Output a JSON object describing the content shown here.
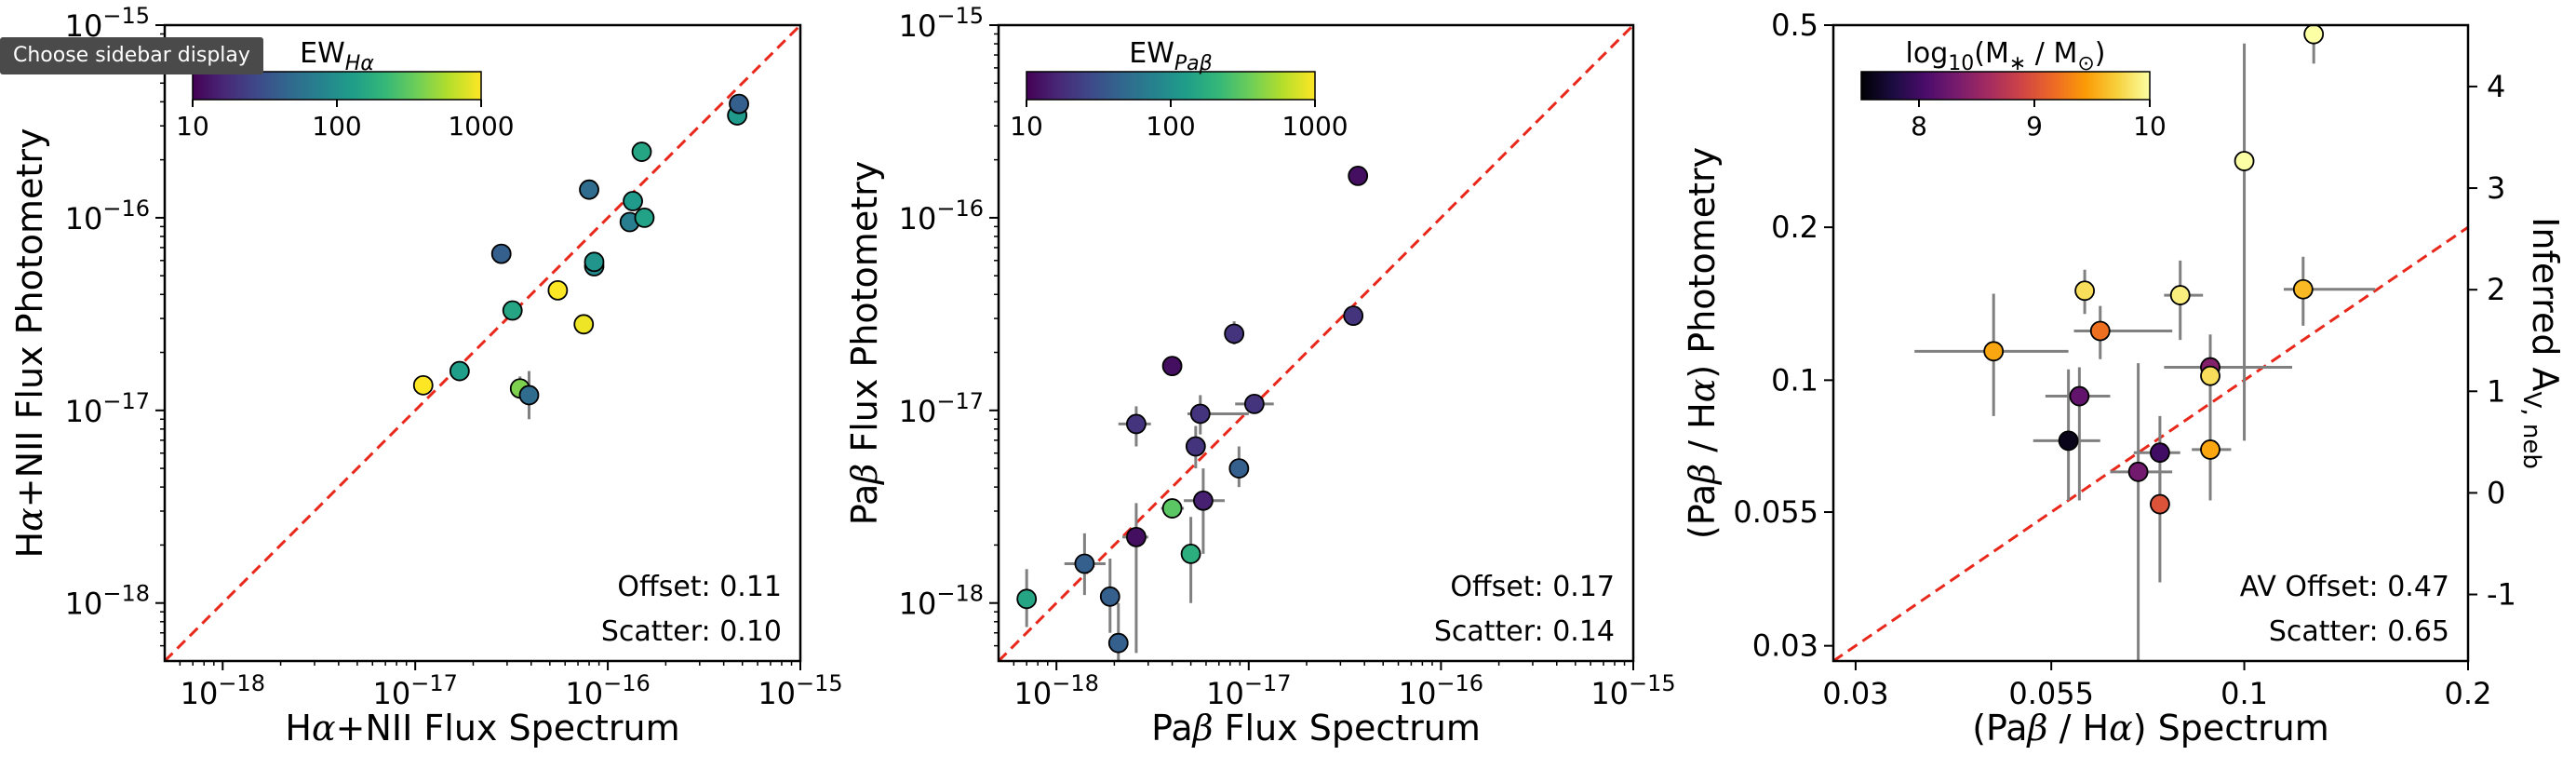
{
  "tooltip": "Choose sidebar display",
  "chart_data": [
    {
      "type": "scatter",
      "xlabel": "Hα+NII Flux Spectrum",
      "ylabel": "Hα+NII Flux Photometry",
      "xscale": "log",
      "yscale": "log",
      "xlim": [
        5e-19,
        1e-15
      ],
      "ylim": [
        5e-19,
        1e-15
      ],
      "xticks": [
        "10⁻¹⁸",
        "10⁻¹⁷",
        "10⁻¹⁶",
        "10⁻¹⁵"
      ],
      "yticks": [
        "10⁻¹⁸",
        "10⁻¹⁷",
        "10⁻¹⁶",
        "10⁻¹⁵"
      ],
      "colorbar": {
        "label": "EWHα",
        "label_main": "EW",
        "label_sub": "Hα",
        "cmap": "viridis",
        "scale": "log",
        "range": [
          10,
          1000
        ],
        "ticks": [
          "10",
          "100",
          "1000"
        ]
      },
      "reference_line": "y = x (red dashed)",
      "annotations": [
        "Offset: 0.11",
        "Scatter: 0.10"
      ],
      "points": [
        {
          "x": 1.1e-17,
          "y": 1.35e-17,
          "c": 1000
        },
        {
          "x": 1.7e-17,
          "y": 1.6e-17,
          "c": 130
        },
        {
          "x": 2.8e-17,
          "y": 6.5e-17,
          "c": 40
        },
        {
          "x": 3.2e-17,
          "y": 3.3e-17,
          "c": 150
        },
        {
          "x": 3.5e-17,
          "y": 1.3e-17,
          "c": 400,
          "yerr": [
            1.15e-17,
            1.5e-17
          ]
        },
        {
          "x": 3.9e-17,
          "y": 1.2e-17,
          "c": 50,
          "yerr": [
            9e-18,
            1.6e-17
          ]
        },
        {
          "x": 5.5e-17,
          "y": 4.2e-17,
          "c": 1000
        },
        {
          "x": 7.5e-17,
          "y": 2.8e-17,
          "c": 900
        },
        {
          "x": 8e-17,
          "y": 1.4e-16,
          "c": 50
        },
        {
          "x": 8.5e-17,
          "y": 5.6e-17,
          "c": 90
        },
        {
          "x": 8.5e-17,
          "y": 5.9e-17,
          "c": 110
        },
        {
          "x": 1.3e-16,
          "y": 9.5e-17,
          "c": 70
        },
        {
          "x": 1.35e-16,
          "y": 1.22e-16,
          "c": 120
        },
        {
          "x": 1.5e-16,
          "y": 2.2e-16,
          "c": 150
        },
        {
          "x": 1.55e-16,
          "y": 1e-16,
          "c": 140
        },
        {
          "x": 4.7e-16,
          "y": 3.4e-16,
          "c": 120
        },
        {
          "x": 4.8e-16,
          "y": 3.9e-16,
          "c": 40
        }
      ]
    },
    {
      "type": "scatter",
      "xlabel": "Paβ Flux Spectrum",
      "ylabel": "Paβ Flux Photometry",
      "xscale": "log",
      "yscale": "log",
      "xlim": [
        5e-19,
        1e-15
      ],
      "ylim": [
        5e-19,
        1e-15
      ],
      "xticks": [
        "10⁻¹⁸",
        "10⁻¹⁷",
        "10⁻¹⁶",
        "10⁻¹⁵"
      ],
      "yticks": [
        "10⁻¹⁸",
        "10⁻¹⁷",
        "10⁻¹⁶",
        "10⁻¹⁵"
      ],
      "colorbar": {
        "label": "EWPaβ",
        "label_main": "EW",
        "label_sub": "Paβ",
        "cmap": "viridis",
        "scale": "log",
        "range": [
          10,
          1000
        ],
        "ticks": [
          "10",
          "100",
          "1000"
        ]
      },
      "reference_line": "y = x (red dashed)",
      "annotations": [
        "Offset: 0.17",
        "Scatter: 0.14"
      ],
      "points": [
        {
          "x": 7e-19,
          "y": 1.05e-18,
          "c": 150,
          "yerr": [
            7.5e-19,
            1.5e-18
          ]
        },
        {
          "x": 1.4e-18,
          "y": 1.6e-18,
          "c": 40,
          "xerr": [
            1.1e-18,
            1.8e-18
          ],
          "yerr": [
            1.1e-18,
            2.3e-18
          ]
        },
        {
          "x": 1.9e-18,
          "y": 1.08e-18,
          "c": 40,
          "yerr": [
            7e-19,
            1.7e-18
          ]
        },
        {
          "x": 2.1e-18,
          "y": 6.2e-19,
          "c": 40,
          "yerr": [
            4.5e-19,
            1e-18
          ]
        },
        {
          "x": 2.6e-18,
          "y": 8.5e-18,
          "c": 20,
          "xerr": [
            2.1e-18,
            3.1e-18
          ],
          "yerr": [
            6.5e-18,
            1.05e-17
          ]
        },
        {
          "x": 2.6e-18,
          "y": 2.2e-18,
          "c": 12,
          "xerr": [
            2.2e-18,
            3e-18
          ],
          "yerr": [
            5.5e-19,
            3.3e-18
          ]
        },
        {
          "x": 4e-18,
          "y": 3.1e-18,
          "c": 300,
          "xerr": [
            3.5e-18,
            4.6e-18
          ]
        },
        {
          "x": 4e-18,
          "y": 1.7e-17,
          "c": 12
        },
        {
          "x": 5e-18,
          "y": 1.8e-18,
          "c": 180,
          "yerr": [
            1e-18,
            2.8e-18
          ]
        },
        {
          "x": 5.3e-18,
          "y": 6.5e-18,
          "c": 20,
          "yerr": [
            5e-18,
            8.3e-18
          ]
        },
        {
          "x": 5.6e-18,
          "y": 9.6e-18,
          "c": 20,
          "xerr": [
            4.8e-18,
            1e-17
          ],
          "yerr": [
            7.5e-18,
            1.2e-17
          ]
        },
        {
          "x": 5.8e-18,
          "y": 3.4e-18,
          "c": 15,
          "xerr": [
            4.6e-18,
            7.5e-18
          ],
          "yerr": [
            1.8e-18,
            5e-18
          ]
        },
        {
          "x": 8.4e-18,
          "y": 2.5e-17,
          "c": 20,
          "yerr": [
            2.2e-17,
            2.9e-17
          ]
        },
        {
          "x": 8.9e-18,
          "y": 5e-18,
          "c": 40,
          "yerr": [
            4e-18,
            6.5e-18
          ]
        },
        {
          "x": 1.07e-17,
          "y": 1.08e-17,
          "c": 20,
          "xerr": [
            8.5e-18,
            1.35e-17
          ]
        },
        {
          "x": 3.5e-17,
          "y": 3.1e-17,
          "c": 20
        },
        {
          "x": 3.7e-17,
          "y": 1.65e-16,
          "c": 12
        }
      ]
    },
    {
      "type": "scatter",
      "xlabel": "(Paβ / Hα) Spectrum",
      "ylabel": "(Paβ / Hα) Photometry",
      "ylabel_right": "Inferred AV,neb",
      "ylabel_right_main": "Inferred A",
      "ylabel_right_sub": "V, neb",
      "xscale": "log",
      "yscale": "log",
      "xlim": [
        0.028,
        0.2
      ],
      "ylim": [
        0.028,
        0.5
      ],
      "xticks": [
        "0.03",
        "0.055",
        "0.1",
        "0.2"
      ],
      "yticks": [
        "0.03",
        "0.055",
        "0.1",
        "0.2",
        "0.5"
      ],
      "yticks_right": [
        "-1",
        "0",
        "1",
        "2",
        "3",
        "4"
      ],
      "colorbar": {
        "label": "log10(M∗ / M⊙)",
        "cmap": "inferno",
        "range": [
          7.5,
          10
        ],
        "ticks": [
          "8",
          "9",
          "10"
        ]
      },
      "reference_line": "y = x (red dashed)",
      "annotations": [
        "AV Offset: 0.47",
        "Scatter: 0.65"
      ],
      "points": [
        {
          "x": 0.046,
          "y": 0.114,
          "c": 9.5,
          "xerr": [
            0.036,
            0.058
          ],
          "yerr": [
            0.085,
            0.148
          ]
        },
        {
          "x": 0.058,
          "y": 0.076,
          "c": 7.6,
          "xerr": [
            0.052,
            0.064
          ],
          "yerr": [
            0.058,
            0.105
          ]
        },
        {
          "x": 0.06,
          "y": 0.093,
          "c": 8.2,
          "xerr": [
            0.054,
            0.066
          ],
          "yerr": [
            0.058,
            0.106
          ]
        },
        {
          "x": 0.061,
          "y": 0.15,
          "c": 9.8,
          "yerr": [
            0.135,
            0.165
          ]
        },
        {
          "x": 0.064,
          "y": 0.125,
          "c": 9.2,
          "xerr": [
            0.059,
            0.08
          ],
          "yerr": [
            0.11,
            0.14
          ]
        },
        {
          "x": 0.072,
          "y": 0.066,
          "c": 8.3,
          "xerr": [
            0.066,
            0.08
          ],
          "yerr": [
            0.026,
            0.108
          ]
        },
        {
          "x": 0.077,
          "y": 0.072,
          "c": 8.0,
          "xerr": [
            0.071,
            0.082
          ],
          "yerr": [
            0.058,
            0.085
          ]
        },
        {
          "x": 0.077,
          "y": 0.057,
          "c": 9.0,
          "yerr": [
            0.04,
            0.066
          ]
        },
        {
          "x": 0.082,
          "y": 0.147,
          "c": 9.9,
          "xerr": [
            0.078,
            0.088
          ],
          "yerr": [
            0.12,
            0.172
          ]
        },
        {
          "x": 0.09,
          "y": 0.106,
          "c": 8.4,
          "xerr": [
            0.078,
            0.116
          ],
          "yerr": [
            0.09,
            0.123
          ]
        },
        {
          "x": 0.09,
          "y": 0.102,
          "c": 9.8
        },
        {
          "x": 0.09,
          "y": 0.073,
          "c": 9.5,
          "xerr": [
            0.085,
            0.096
          ],
          "yerr": [
            0.058,
            0.1
          ]
        },
        {
          "x": 0.1,
          "y": 0.27,
          "c": 10,
          "yerr": [
            0.076,
            0.46
          ]
        },
        {
          "x": 0.12,
          "y": 0.151,
          "c": 9.6,
          "xerr": [
            0.113,
            0.15
          ],
          "yerr": [
            0.128,
            0.175
          ]
        },
        {
          "x": 0.124,
          "y": 0.48,
          "c": 10,
          "yerr": [
            0.42,
            0.52
          ]
        }
      ]
    }
  ]
}
